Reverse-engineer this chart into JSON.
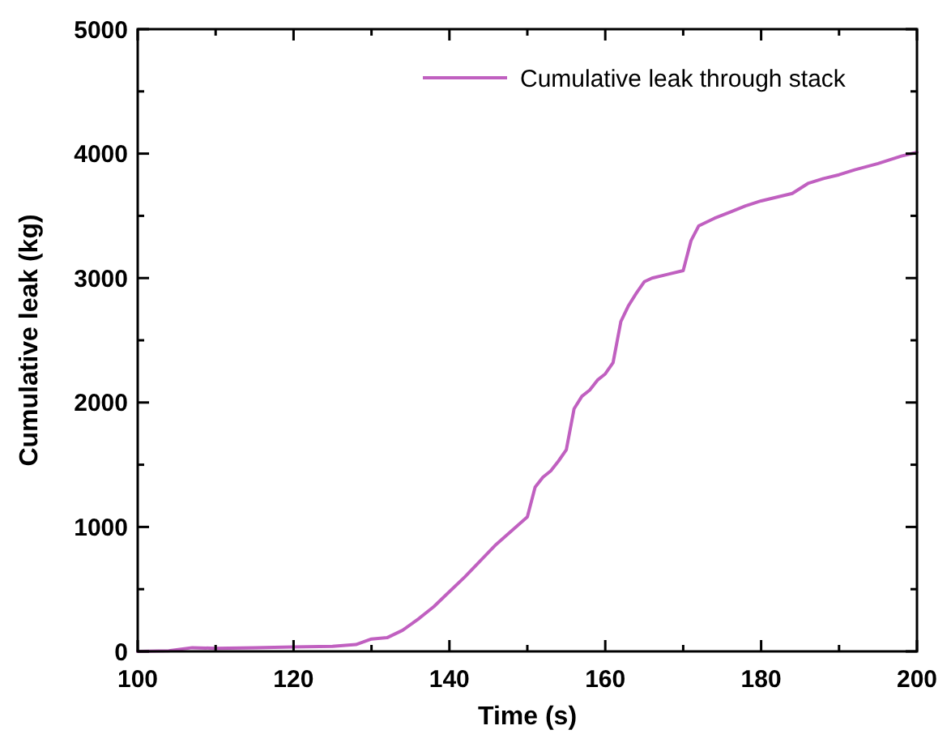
{
  "chart_data": {
    "type": "line",
    "xlabel": "Time (s)",
    "ylabel": "Cumulative leak (kg)",
    "xlim": [
      100,
      200
    ],
    "ylim": [
      0,
      5000
    ],
    "xticks": [
      100,
      120,
      140,
      160,
      180,
      200
    ],
    "yticks": [
      0,
      1000,
      2000,
      3000,
      4000,
      5000
    ],
    "legend": "top right",
    "grid": false,
    "marker": "none",
    "line_style": "solid",
    "series": [
      {
        "name": "Cumulative leak through stack",
        "color": "#c060c0",
        "x": [
          100,
          104,
          107,
          110,
          115,
          120,
          125,
          128,
          130,
          132,
          134,
          136,
          138,
          140,
          142,
          144,
          146,
          148,
          150,
          151,
          152,
          153,
          154,
          155,
          156,
          157,
          158,
          159,
          160,
          161,
          162,
          163,
          164,
          165,
          166,
          168,
          170,
          171,
          172,
          174,
          176,
          178,
          180,
          184,
          186,
          188,
          190,
          192,
          195,
          198,
          200
        ],
        "values": [
          0,
          5,
          30,
          25,
          30,
          35,
          40,
          55,
          100,
          110,
          170,
          260,
          360,
          480,
          600,
          730,
          860,
          970,
          1080,
          1320,
          1400,
          1450,
          1530,
          1620,
          1950,
          2050,
          2100,
          2180,
          2230,
          2320,
          2650,
          2780,
          2880,
          2970,
          3000,
          3030,
          3060,
          3300,
          3420,
          3480,
          3530,
          3580,
          3620,
          3680,
          3760,
          3800,
          3830,
          3870,
          3920,
          3980,
          4010
        ]
      }
    ]
  }
}
